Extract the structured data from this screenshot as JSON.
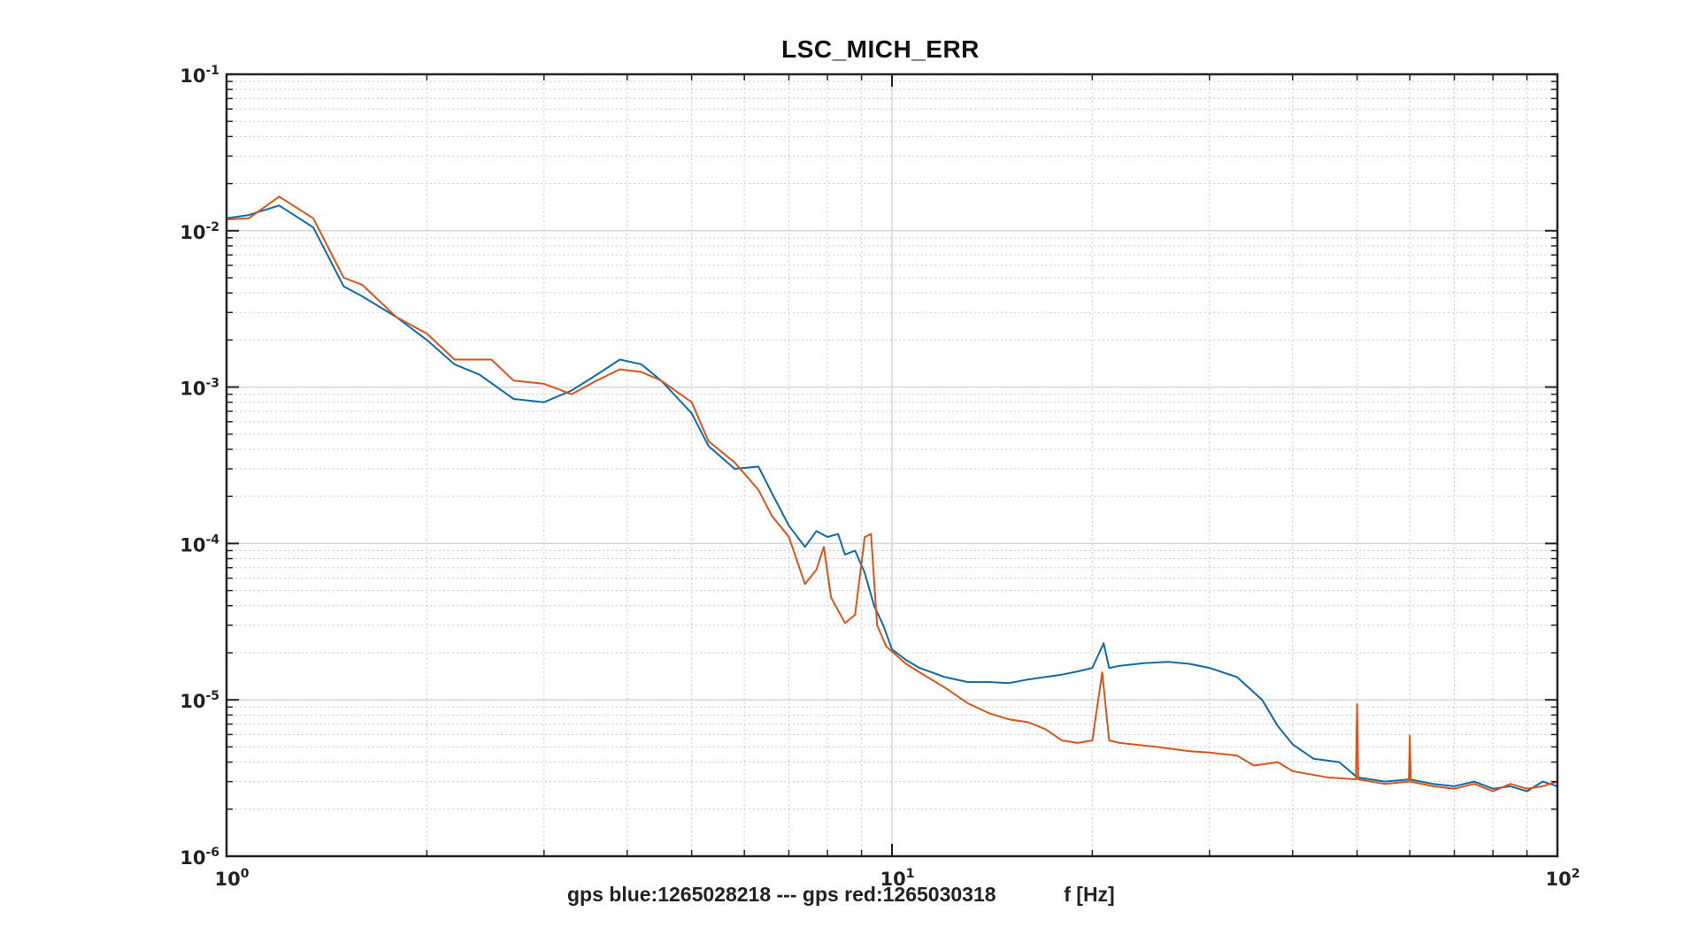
{
  "chart_data": {
    "type": "line",
    "title": "LSC_MICH_ERR",
    "xlabel_parts": [
      "gps blue:1265028218 --- gps red:1265030318",
      "f [Hz]"
    ],
    "ylabel": "",
    "xscale": "log",
    "yscale": "log",
    "xlim": [
      1,
      100
    ],
    "ylim": [
      1e-06,
      0.1
    ],
    "grid": "major and minor",
    "x_ticks": [
      {
        "base": "10",
        "exp": "0",
        "value": 1
      },
      {
        "base": "10",
        "exp": "1",
        "value": 10
      },
      {
        "base": "10",
        "exp": "2",
        "value": 100
      }
    ],
    "y_ticks": [
      {
        "base": "10",
        "exp": "-1",
        "value": 0.1
      },
      {
        "base": "10",
        "exp": "-2",
        "value": 0.01
      },
      {
        "base": "10",
        "exp": "-3",
        "value": 0.001
      },
      {
        "base": "10",
        "exp": "-4",
        "value": 0.0001
      },
      {
        "base": "10",
        "exp": "-5",
        "value": 1e-05
      },
      {
        "base": "10",
        "exp": "-6",
        "value": 1e-06
      }
    ],
    "series": [
      {
        "label": "blue",
        "color": "#0e6aa8",
        "points": [
          [
            1.0,
            0.012
          ],
          [
            1.08,
            0.0126
          ],
          [
            1.2,
            0.0145
          ],
          [
            1.35,
            0.0105
          ],
          [
            1.5,
            0.0044
          ],
          [
            1.6,
            0.0038
          ],
          [
            1.8,
            0.0028
          ],
          [
            2.0,
            0.002
          ],
          [
            2.2,
            0.0014
          ],
          [
            2.4,
            0.0012
          ],
          [
            2.7,
            0.00084
          ],
          [
            3.0,
            0.0008
          ],
          [
            3.3,
            0.00095
          ],
          [
            3.6,
            0.0012
          ],
          [
            3.9,
            0.0015
          ],
          [
            4.2,
            0.0014
          ],
          [
            4.5,
            0.0011
          ],
          [
            5.0,
            0.00068
          ],
          [
            5.3,
            0.00042
          ],
          [
            5.8,
            0.0003
          ],
          [
            6.3,
            0.00031
          ],
          [
            6.6,
            0.00021
          ],
          [
            7.0,
            0.00013
          ],
          [
            7.4,
            9.5e-05
          ],
          [
            7.7,
            0.00012
          ],
          [
            8.0,
            0.00011
          ],
          [
            8.3,
            0.000115
          ],
          [
            8.5,
            8.5e-05
          ],
          [
            8.8,
            9e-05
          ],
          [
            9.1,
            6.5e-05
          ],
          [
            9.4,
            4e-05
          ],
          [
            9.7,
            3e-05
          ],
          [
            10.0,
            2.1e-05
          ],
          [
            10.5,
            1.8e-05
          ],
          [
            11.0,
            1.6e-05
          ],
          [
            12.0,
            1.4e-05
          ],
          [
            13.0,
            1.3e-05
          ],
          [
            14.0,
            1.3e-05
          ],
          [
            15.0,
            1.28e-05
          ],
          [
            16.0,
            1.35e-05
          ],
          [
            17.0,
            1.4e-05
          ],
          [
            18.0,
            1.45e-05
          ],
          [
            19.0,
            1.52e-05
          ],
          [
            20.0,
            1.6e-05
          ],
          [
            20.8,
            2.3e-05
          ],
          [
            21.2,
            1.6e-05
          ],
          [
            22.0,
            1.65e-05
          ],
          [
            24.0,
            1.72e-05
          ],
          [
            26.0,
            1.75e-05
          ],
          [
            28.0,
            1.7e-05
          ],
          [
            30.0,
            1.6e-05
          ],
          [
            33.0,
            1.4e-05
          ],
          [
            36.0,
            1e-05
          ],
          [
            38.0,
            6.8e-06
          ],
          [
            40.0,
            5.2e-06
          ],
          [
            43.0,
            4.2e-06
          ],
          [
            47.0,
            4e-06
          ],
          [
            50.0,
            3.2e-06
          ],
          [
            55.0,
            3e-06
          ],
          [
            60.0,
            3.1e-06
          ],
          [
            65.0,
            2.9e-06
          ],
          [
            70.0,
            2.8e-06
          ],
          [
            75.0,
            3e-06
          ],
          [
            80.0,
            2.7e-06
          ],
          [
            85.0,
            2.8e-06
          ],
          [
            90.0,
            2.6e-06
          ],
          [
            95.0,
            3e-06
          ],
          [
            100.0,
            2.8e-06
          ]
        ]
      },
      {
        "label": "red",
        "color": "#d9541a",
        "points": [
          [
            1.0,
            0.0118
          ],
          [
            1.08,
            0.012
          ],
          [
            1.2,
            0.0165
          ],
          [
            1.35,
            0.012
          ],
          [
            1.5,
            0.005
          ],
          [
            1.6,
            0.0045
          ],
          [
            1.8,
            0.0028
          ],
          [
            2.0,
            0.0022
          ],
          [
            2.2,
            0.0015
          ],
          [
            2.5,
            0.0015
          ],
          [
            2.7,
            0.0011
          ],
          [
            3.0,
            0.00105
          ],
          [
            3.3,
            0.0009
          ],
          [
            3.6,
            0.0011
          ],
          [
            3.9,
            0.0013
          ],
          [
            4.2,
            0.00125
          ],
          [
            4.5,
            0.0011
          ],
          [
            5.0,
            0.0008
          ],
          [
            5.3,
            0.00045
          ],
          [
            5.8,
            0.00033
          ],
          [
            6.3,
            0.00022
          ],
          [
            6.6,
            0.00015
          ],
          [
            7.0,
            0.00011
          ],
          [
            7.4,
            5.5e-05
          ],
          [
            7.7,
            6.8e-05
          ],
          [
            7.9,
            9.5e-05
          ],
          [
            8.1,
            4.5e-05
          ],
          [
            8.5,
            3.1e-05
          ],
          [
            8.8,
            3.5e-05
          ],
          [
            9.1,
            0.00011
          ],
          [
            9.3,
            0.000115
          ],
          [
            9.5,
            3e-05
          ],
          [
            9.8,
            2.2e-05
          ],
          [
            10.5,
            1.7e-05
          ],
          [
            11.0,
            1.5e-05
          ],
          [
            12.0,
            1.2e-05
          ],
          [
            13.0,
            9.5e-06
          ],
          [
            14.0,
            8.2e-06
          ],
          [
            15.0,
            7.5e-06
          ],
          [
            16.0,
            7.2e-06
          ],
          [
            17.0,
            6.5e-06
          ],
          [
            18.0,
            5.5e-06
          ],
          [
            19.0,
            5.3e-06
          ],
          [
            20.0,
            5.5e-06
          ],
          [
            20.7,
            1.5e-05
          ],
          [
            21.2,
            5.5e-06
          ],
          [
            22.0,
            5.3e-06
          ],
          [
            25.0,
            5e-06
          ],
          [
            28.0,
            4.7e-06
          ],
          [
            30.0,
            4.6e-06
          ],
          [
            33.0,
            4.4e-06
          ],
          [
            35.0,
            3.8e-06
          ],
          [
            38.0,
            4e-06
          ],
          [
            40.0,
            3.5e-06
          ],
          [
            45.0,
            3.2e-06
          ],
          [
            49.8,
            3.1e-06
          ],
          [
            50.0,
            9.4e-06
          ],
          [
            50.2,
            3.1e-06
          ],
          [
            55.0,
            2.9e-06
          ],
          [
            59.8,
            3e-06
          ],
          [
            60.0,
            5.9e-06
          ],
          [
            60.2,
            3e-06
          ],
          [
            65.0,
            2.8e-06
          ],
          [
            70.0,
            2.7e-06
          ],
          [
            75.0,
            2.9e-06
          ],
          [
            80.0,
            2.6e-06
          ],
          [
            85.0,
            2.9e-06
          ],
          [
            90.0,
            2.7e-06
          ],
          [
            95.0,
            2.8e-06
          ],
          [
            100.0,
            3e-06
          ]
        ]
      }
    ]
  }
}
